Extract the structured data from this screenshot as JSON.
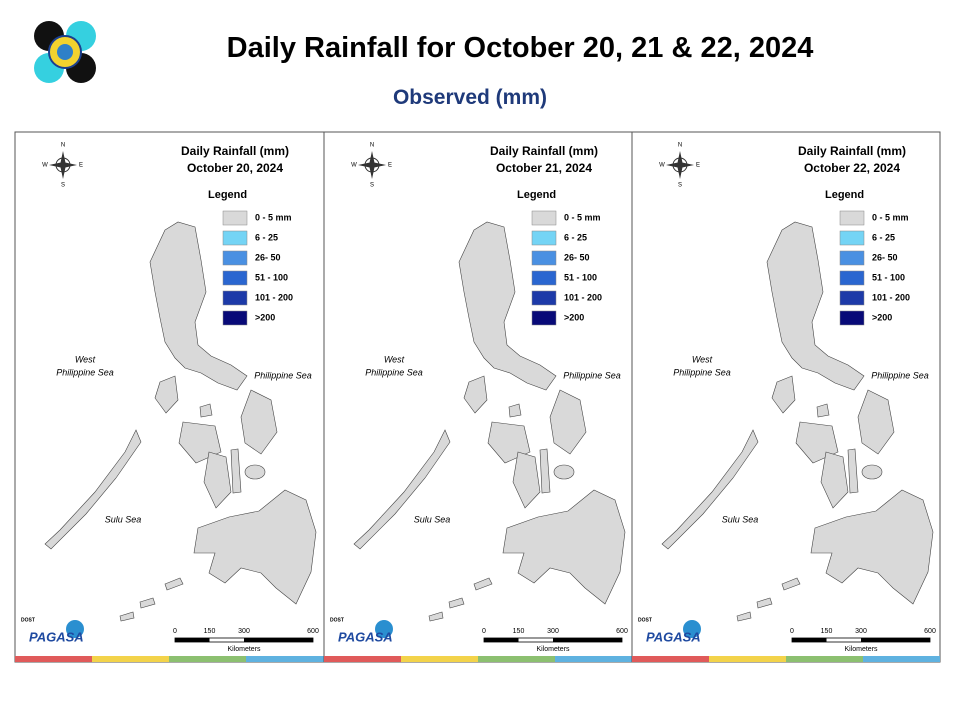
{
  "header": {
    "title": "Daily Rainfall for October 20, 21 & 22, 2024",
    "subtitle": "Observed (mm)"
  },
  "panels": [
    {
      "title": "Daily Rainfall (mm)",
      "date": "October 20, 2024",
      "compass": [
        "N",
        "E",
        "S",
        "W"
      ],
      "legend": {
        "title": "Legend",
        "items": [
          {
            "label": "0 - 5 mm",
            "color": "#d9d9d9"
          },
          {
            "label": "6 - 25",
            "color": "#74d4f5"
          },
          {
            "label": "26- 50",
            "color": "#4a90e2"
          },
          {
            "label": "51 - 100",
            "color": "#2a66d0"
          },
          {
            "label": "101 - 200",
            "color": "#1d3aa8"
          },
          {
            "label": ">200",
            "color": "#080a78"
          }
        ]
      },
      "seas": {
        "west": [
          "West",
          "Philippine Sea"
        ],
        "east": "Philippine Sea",
        "south": "Sulu Sea"
      },
      "scale": {
        "ticks": [
          0,
          150,
          300,
          600
        ],
        "unit": "Kilometers"
      },
      "logo": {
        "agency": "PAGASA",
        "dept": "DOST"
      }
    },
    {
      "title": "Daily Rainfall (mm)",
      "date": "October 21, 2024",
      "compass": [
        "N",
        "E",
        "S",
        "W"
      ],
      "legend": {
        "title": "Legend",
        "items": [
          {
            "label": "0 - 5 mm",
            "color": "#d9d9d9"
          },
          {
            "label": "6 - 25",
            "color": "#74d4f5"
          },
          {
            "label": "26- 50",
            "color": "#4a90e2"
          },
          {
            "label": "51 - 100",
            "color": "#2a66d0"
          },
          {
            "label": "101 - 200",
            "color": "#1d3aa8"
          },
          {
            "label": ">200",
            "color": "#080a78"
          }
        ]
      },
      "seas": {
        "west": [
          "West",
          "Philippine Sea"
        ],
        "east": "Philippine Sea",
        "south": "Sulu Sea"
      },
      "scale": {
        "ticks": [
          0,
          150,
          300,
          600
        ],
        "unit": "Kilometers"
      },
      "logo": {
        "agency": "PAGASA",
        "dept": "DOST"
      }
    },
    {
      "title": "Daily Rainfall (mm)",
      "date": "October 22, 2024",
      "compass": [
        "N",
        "E",
        "S",
        "W"
      ],
      "legend": {
        "title": "Legend",
        "items": [
          {
            "label": "0 - 5 mm",
            "color": "#d9d9d9"
          },
          {
            "label": "6 - 25",
            "color": "#74d4f5"
          },
          {
            "label": "26- 50",
            "color": "#4a90e2"
          },
          {
            "label": "51 - 100",
            "color": "#2a66d0"
          },
          {
            "label": "101 - 200",
            "color": "#1d3aa8"
          },
          {
            "label": ">200",
            "color": "#080a78"
          }
        ]
      },
      "seas": {
        "west": [
          "West",
          "Philippine Sea"
        ],
        "east": "Philippine Sea",
        "south": "Sulu Sea"
      },
      "scale": {
        "ticks": [
          0,
          150,
          300,
          600
        ],
        "unit": "Kilometers"
      },
      "logo": {
        "agency": "PAGASA",
        "dept": "DOST"
      }
    }
  ]
}
